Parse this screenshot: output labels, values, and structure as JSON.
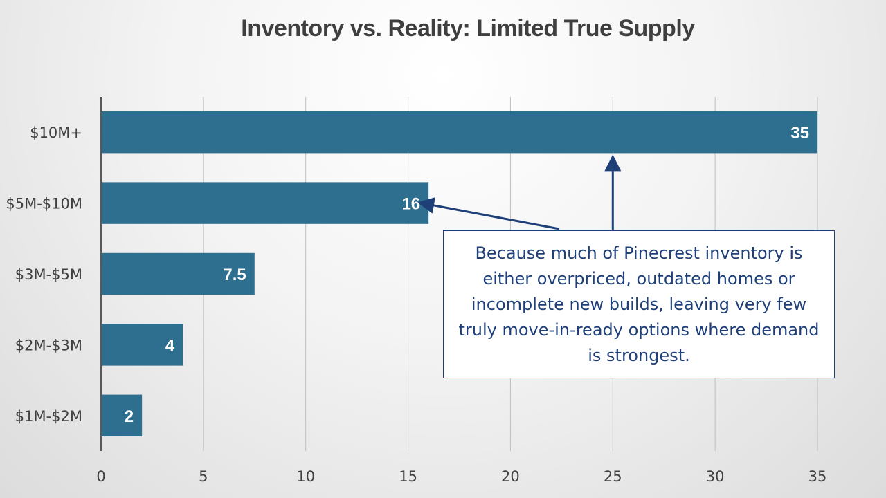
{
  "chart_data": {
    "type": "bar",
    "orientation": "horizontal",
    "title": "Inventory vs. Reality: Limited True Supply",
    "categories": [
      "$10M+",
      "$5M-$10M",
      "$3M-$5M",
      "$2M-$3M",
      "$1M-$2M"
    ],
    "values": [
      35,
      16,
      7.5,
      4,
      2
    ],
    "value_labels": [
      "35",
      "16",
      "7.5",
      "4",
      "2"
    ],
    "xlim": [
      0,
      35
    ],
    "x_ticks": [
      0,
      5,
      10,
      15,
      20,
      25,
      30,
      35
    ],
    "grid": "vertical",
    "bar_color": "#2e6e8e",
    "label_color": "#ffffff",
    "axis_color": "#595959",
    "grid_color": "#bfbfbf",
    "text_color": "#404040"
  },
  "annotation": {
    "text": "Because much of Pinecrest inventory is either overpriced, outdated homes or incomplete new builds, leaving very few truly move-in-ready options where demand is strongest.",
    "color": "#1f3f78",
    "arrow_targets": [
      "$5M-$10M",
      "$10M+"
    ]
  }
}
